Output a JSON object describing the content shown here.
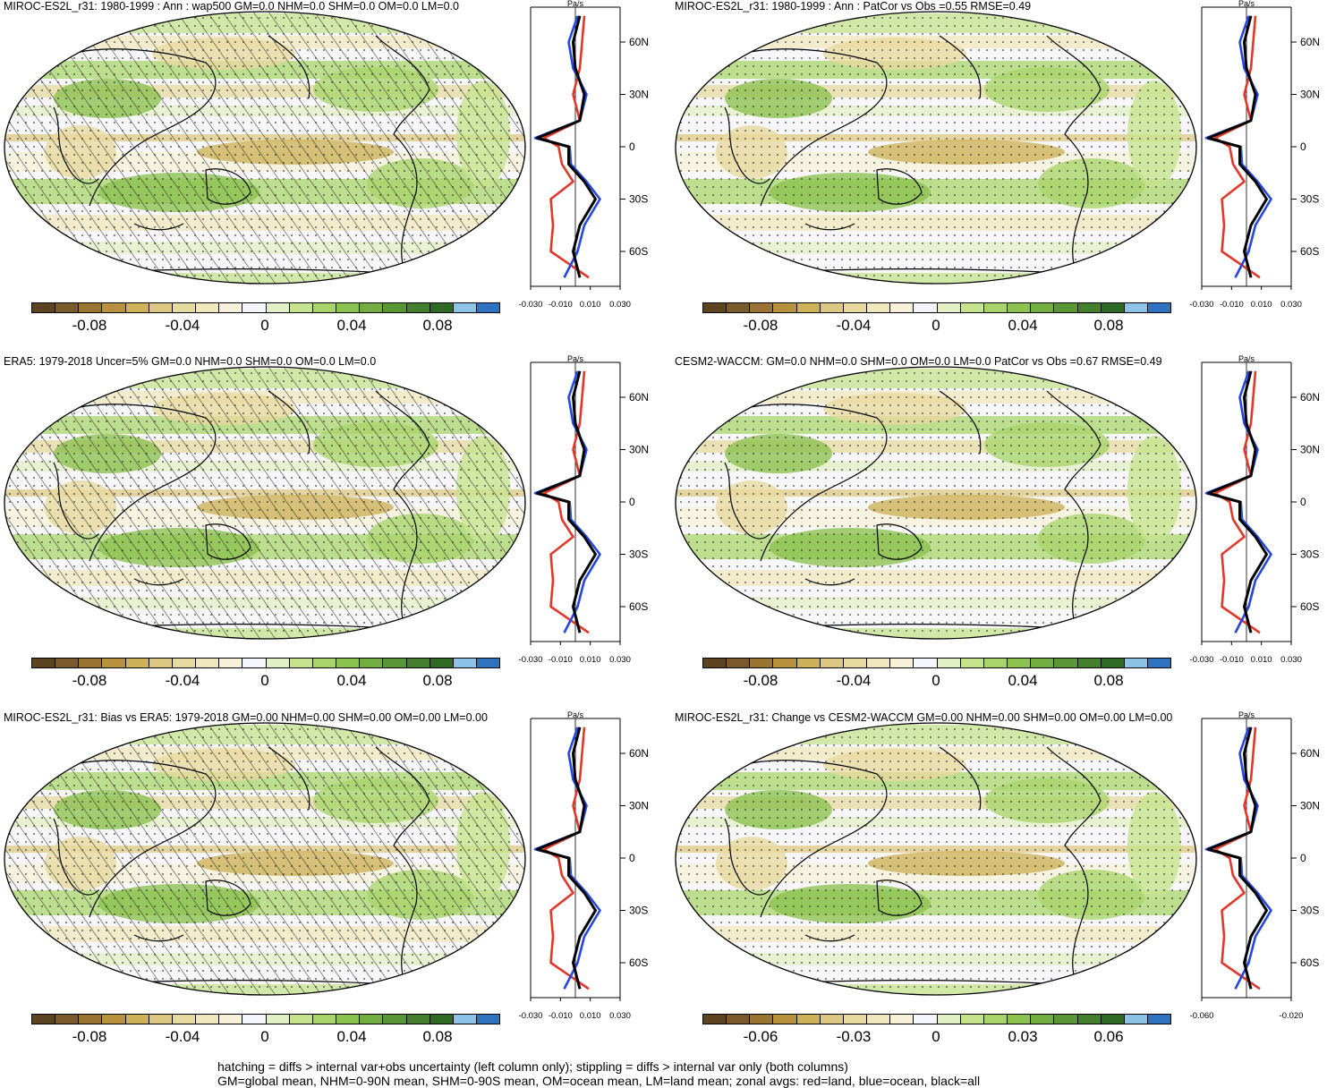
{
  "colors": {
    "palette": [
      "#5d4421",
      "#7a5a2c",
      "#9a7432",
      "#b8923e",
      "#cdb25a",
      "#dcc882",
      "#e7da9f",
      "#f0e8bc",
      "#f6f1d8",
      "#f4f6fb",
      "#e3efc4",
      "#c6e38e",
      "#a9d46b",
      "#8cc250",
      "#72ad42",
      "#599636",
      "#437f2c",
      "#2f6a24",
      "#8ec3e8",
      "#2f73c0"
    ],
    "land": "#e0392b",
    "ocean": "#2546e0",
    "all": "#000000"
  },
  "panels": [
    {
      "title": "MIROC-ES2L_r31: 1980-1999 : Ann : wap500 GM=0.0 NHM=0.0 SHM=0.0 OM=0.0 LM=0.0",
      "hatched": true,
      "colorbar_labels": [
        "-0.08",
        "-0.04",
        "0",
        "0.04",
        "0.08"
      ],
      "profile_unit": "Pa/s",
      "profile_xticks": [
        "-0.030",
        "-0.010",
        "0.010",
        "0.030"
      ]
    },
    {
      "title": "MIROC-ES2L_r31: 1980-1999 : Ann : PatCor vs Obs =0.55 RMSE=0.49",
      "hatched": false,
      "colorbar_labels": [
        "-0.08",
        "-0.04",
        "0",
        "0.04",
        "0.08"
      ],
      "profile_unit": "Pa/s",
      "profile_xticks": [
        "-0.030",
        "-0.010",
        "0.010",
        "0.030"
      ]
    },
    {
      "title": "ERA5: 1979-2018 Uncer=5% GM=0.0 NHM=0.0 SHM=0.0 OM=0.0 LM=0.0",
      "hatched": true,
      "colorbar_labels": [
        "-0.08",
        "-0.04",
        "0",
        "0.04",
        "0.08"
      ],
      "profile_unit": "Pa/s",
      "profile_xticks": [
        "-0.030",
        "-0.010",
        "0.010",
        "0.030"
      ]
    },
    {
      "title": "CESM2-WACCM: GM=0.0 NHM=0.0 SHM=0.0 OM=0.0 LM=0.0 PatCor vs Obs =0.67 RMSE=0.49",
      "hatched": false,
      "colorbar_labels": [
        "-0.08",
        "-0.04",
        "0",
        "0.04",
        "0.08"
      ],
      "profile_unit": "Pa/s",
      "profile_xticks": [
        "-0.030",
        "-0.010",
        "0.010",
        "0.030"
      ]
    },
    {
      "title": "MIROC-ES2L_r31: Bias vs ERA5: 1979-2018 GM=0.00 NHM=0.00 SHM=0.00 OM=0.00 LM=0.00",
      "hatched": true,
      "colorbar_labels": [
        "-0.08",
        "-0.04",
        "0",
        "0.04",
        "0.08"
      ],
      "profile_unit": "Pa/s",
      "profile_xticks": [
        "-0.030",
        "-0.010",
        "0.010",
        "0.030"
      ]
    },
    {
      "title": "MIROC-ES2L_r31: Change vs CESM2-WACCM GM=0.00 NHM=0.00 SHM=0.00 OM=0.00 LM=0.00",
      "hatched": false,
      "colorbar_labels": [
        "-0.06",
        "-0.03",
        "0",
        "0.03",
        "0.06"
      ],
      "profile_unit": "Pa/s",
      "profile_xticks": [
        "-0.060",
        "-0.020"
      ]
    }
  ],
  "chart_data": {
    "type": "heatmap",
    "title": "",
    "profile_ytick_labels": [
      "60N",
      "30N",
      "0",
      "30S",
      "60S"
    ],
    "profile_ytick_values": [
      60,
      30,
      0,
      -30,
      -60
    ],
    "profile_ylim": [
      -80,
      80
    ],
    "zonal_profiles": {
      "lat": [
        75,
        60,
        45,
        30,
        15,
        5,
        0,
        -10,
        -20,
        -30,
        -45,
        -60,
        -75
      ],
      "series": [
        {
          "name": "red=land",
          "values": [
            0.008,
            0.006,
            0.004,
            -0.002,
            0.004,
            -0.028,
            -0.015,
            -0.012,
            -0.002,
            -0.022,
            -0.02,
            -0.022,
            0.012
          ]
        },
        {
          "name": "blue=ocean",
          "values": [
            0.002,
            -0.006,
            -0.002,
            0.01,
            0.004,
            -0.036,
            -0.005,
            -0.004,
            0.01,
            0.022,
            0.008,
            0.002,
            -0.01
          ]
        },
        {
          "name": "black=all",
          "values": [
            0.004,
            -0.002,
            0.0,
            0.008,
            0.004,
            -0.034,
            -0.006,
            -0.006,
            0.008,
            0.018,
            0.004,
            -0.002,
            0.004
          ]
        }
      ]
    }
  },
  "footer": {
    "line1": "hatching = diffs > internal var+obs uncertainty (left column only); stippling = diffs > internal var only (both columns)",
    "line2": "GM=global mean, NHM=0-90N mean, SHM=0-90S mean, OM=ocean mean, LM=land mean; zonal avgs: red=land, blue=ocean, black=all"
  }
}
